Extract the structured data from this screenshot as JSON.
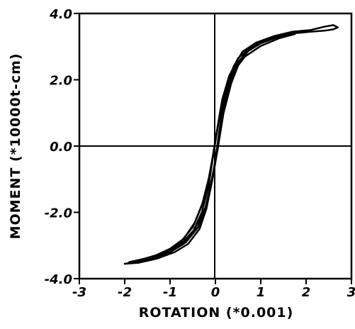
{
  "chart_data": {
    "type": "line",
    "title": "",
    "xlabel": "ROTATION (*0.001)",
    "ylabel": "MOMENT (*10000t-cm)",
    "xlim": [
      -3,
      3
    ],
    "ylim": [
      -4,
      4
    ],
    "x_ticks": [
      -3,
      -2,
      -1,
      0,
      1,
      2,
      3
    ],
    "x_tick_labels": [
      "-3",
      "-2",
      "-1",
      "0",
      "1",
      "2",
      "3"
    ],
    "y_ticks": [
      -4,
      -2,
      0,
      2,
      4
    ],
    "y_tick_labels": [
      "-4.0",
      "-2.0",
      "0.0",
      "2.0",
      "4.0"
    ],
    "grid": false,
    "zero_lines": true,
    "line_color": "#000000",
    "series": [
      {
        "points": [
          [
            -2.0,
            -3.55
          ],
          [
            -1.5,
            -3.45
          ],
          [
            -1.0,
            -3.2
          ],
          [
            -0.7,
            -2.95
          ],
          [
            -0.5,
            -2.6
          ],
          [
            -0.3,
            -2.0
          ],
          [
            -0.15,
            -1.2
          ],
          [
            -0.05,
            -0.3
          ],
          [
            0.05,
            0.6
          ],
          [
            0.15,
            1.4
          ],
          [
            0.3,
            2.1
          ],
          [
            0.5,
            2.65
          ],
          [
            0.8,
            3.0
          ],
          [
            1.2,
            3.25
          ],
          [
            1.7,
            3.4
          ],
          [
            2.1,
            3.45
          ],
          [
            2.4,
            3.48
          ],
          [
            2.6,
            3.52
          ],
          [
            2.7,
            3.58
          ],
          [
            2.6,
            3.65
          ],
          [
            2.4,
            3.6
          ],
          [
            2.1,
            3.5
          ],
          [
            1.7,
            3.45
          ],
          [
            1.3,
            3.32
          ],
          [
            0.9,
            3.12
          ],
          [
            0.6,
            2.85
          ],
          [
            0.4,
            2.4
          ],
          [
            0.25,
            1.7
          ],
          [
            0.12,
            0.8
          ],
          [
            0.02,
            -0.2
          ],
          [
            -0.08,
            -1.1
          ],
          [
            -0.2,
            -1.9
          ],
          [
            -0.35,
            -2.5
          ],
          [
            -0.6,
            -2.95
          ],
          [
            -0.9,
            -3.2
          ],
          [
            -1.3,
            -3.4
          ],
          [
            -1.7,
            -3.52
          ],
          [
            -2.0,
            -3.55
          ]
        ]
      },
      {
        "points": [
          [
            -1.9,
            -3.5
          ],
          [
            -1.4,
            -3.35
          ],
          [
            -1.0,
            -3.1
          ],
          [
            -0.7,
            -2.8
          ],
          [
            -0.45,
            -2.3
          ],
          [
            -0.25,
            -1.6
          ],
          [
            -0.1,
            -0.7
          ],
          [
            0.0,
            0.2
          ],
          [
            0.12,
            1.1
          ],
          [
            0.28,
            1.9
          ],
          [
            0.45,
            2.45
          ],
          [
            0.7,
            2.85
          ],
          [
            1.0,
            3.1
          ],
          [
            1.4,
            3.3
          ],
          [
            1.8,
            3.42
          ],
          [
            1.5,
            3.38
          ],
          [
            1.1,
            3.2
          ],
          [
            0.8,
            2.98
          ],
          [
            0.55,
            2.6
          ],
          [
            0.35,
            1.9
          ],
          [
            0.18,
            1.0
          ],
          [
            0.06,
            0.0
          ],
          [
            -0.05,
            -0.9
          ],
          [
            -0.18,
            -1.7
          ],
          [
            -0.38,
            -2.45
          ],
          [
            -0.65,
            -2.9
          ],
          [
            -1.0,
            -3.2
          ],
          [
            -1.45,
            -3.42
          ],
          [
            -1.9,
            -3.5
          ]
        ]
      },
      {
        "points": [
          [
            -1.7,
            -3.45
          ],
          [
            -1.2,
            -3.25
          ],
          [
            -0.8,
            -2.95
          ],
          [
            -0.5,
            -2.45
          ],
          [
            -0.3,
            -1.8
          ],
          [
            -0.15,
            -1.0
          ],
          [
            -0.03,
            -0.1
          ],
          [
            0.08,
            0.8
          ],
          [
            0.22,
            1.6
          ],
          [
            0.4,
            2.25
          ],
          [
            0.65,
            2.7
          ],
          [
            1.0,
            3.02
          ],
          [
            1.4,
            3.25
          ],
          [
            1.75,
            3.38
          ],
          [
            1.4,
            3.3
          ],
          [
            1.0,
            3.12
          ],
          [
            0.7,
            2.88
          ],
          [
            0.48,
            2.45
          ],
          [
            0.3,
            1.8
          ],
          [
            0.16,
            0.9
          ],
          [
            0.05,
            -0.1
          ],
          [
            -0.08,
            -1.0
          ],
          [
            -0.22,
            -1.85
          ],
          [
            -0.45,
            -2.5
          ],
          [
            -0.75,
            -2.95
          ],
          [
            -1.15,
            -3.25
          ],
          [
            -1.7,
            -3.45
          ]
        ]
      }
    ]
  }
}
